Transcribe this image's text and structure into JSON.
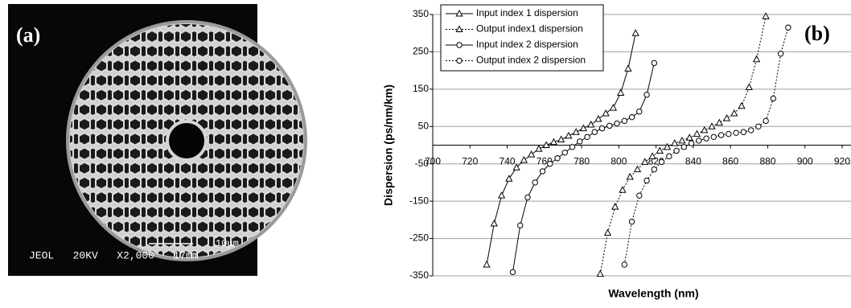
{
  "panel_a": {
    "label": "(a)",
    "scale_bar": "10μm",
    "info": "JEOL   20KV   X2,000   17mm"
  },
  "chart_data": {
    "type": "line",
    "panel_label": "(b)",
    "x_label": "Wavelength (nm)",
    "y_label": "Dispersion (ps/nm/km)",
    "xlim": [
      700,
      920
    ],
    "xticks": [
      700,
      720,
      740,
      760,
      780,
      800,
      820,
      840,
      860,
      880,
      900,
      920
    ],
    "ylim": [
      -350,
      350
    ],
    "yticks": [
      -350,
      -250,
      -150,
      -50,
      50,
      150,
      250,
      350
    ],
    "grid": true,
    "legend": "top-left",
    "series": [
      {
        "name": "Input index 1 dispersion",
        "color": "#000000",
        "marker": "triangle",
        "dash": "solid",
        "x": [
          729,
          733,
          737,
          741,
          745,
          749,
          753,
          757,
          761,
          765,
          769,
          773,
          777,
          781,
          785,
          789,
          793,
          797,
          801,
          805,
          809
        ],
        "values": [
          -320,
          -210,
          -135,
          -90,
          -60,
          -40,
          -25,
          -10,
          0,
          8,
          15,
          25,
          35,
          45,
          55,
          70,
          85,
          100,
          140,
          205,
          300
        ]
      },
      {
        "name": "Output index1 dispersion",
        "color": "#000000",
        "marker": "triangle",
        "dash": "dotted",
        "x": [
          790,
          794,
          798,
          802,
          806,
          810,
          814,
          818,
          822,
          826,
          830,
          834,
          838,
          842,
          846,
          850,
          854,
          858,
          862,
          866,
          870,
          874,
          879
        ],
        "values": [
          -345,
          -235,
          -165,
          -120,
          -85,
          -65,
          -45,
          -30,
          -15,
          -5,
          5,
          12,
          20,
          30,
          40,
          50,
          60,
          72,
          85,
          105,
          155,
          230,
          345
        ]
      },
      {
        "name": "Input index 2 dispersion",
        "color": "#000000",
        "marker": "circle",
        "dash": "solid",
        "x": [
          743,
          747,
          751,
          755,
          759,
          763,
          767,
          771,
          775,
          779,
          783,
          787,
          791,
          795,
          799,
          803,
          807,
          811,
          815,
          819
        ],
        "values": [
          -340,
          -215,
          -140,
          -100,
          -70,
          -50,
          -35,
          -20,
          -5,
          10,
          22,
          35,
          45,
          52,
          58,
          65,
          75,
          90,
          135,
          220
        ]
      },
      {
        "name": "Output index 2 dispersion",
        "color": "#000000",
        "marker": "circle",
        "dash": "dotted",
        "x": [
          803,
          807,
          811,
          815,
          819,
          823,
          827,
          831,
          835,
          839,
          843,
          847,
          851,
          855,
          859,
          863,
          867,
          871,
          875,
          879,
          883,
          887,
          891
        ],
        "values": [
          -320,
          -205,
          -135,
          -95,
          -65,
          -45,
          -30,
          -15,
          -5,
          5,
          12,
          18,
          22,
          27,
          30,
          33,
          35,
          40,
          50,
          65,
          125,
          245,
          315
        ]
      }
    ]
  }
}
